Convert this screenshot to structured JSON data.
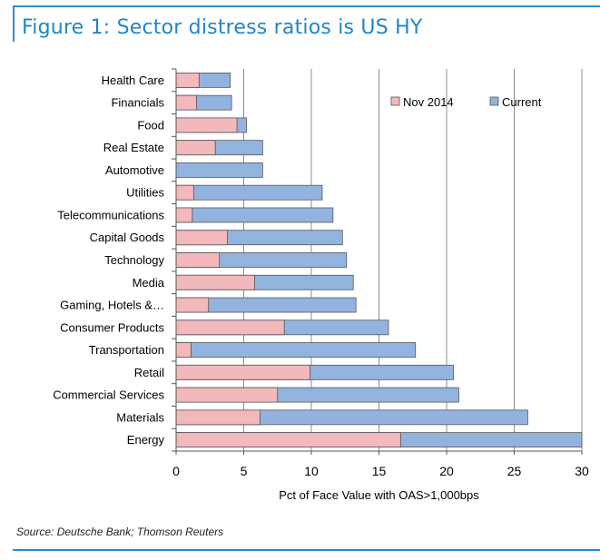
{
  "header": {
    "title": "Figure 1: Sector distress ratios is US HY"
  },
  "footer": {
    "source": "Source: Deutsche Bank; Thomson Reuters"
  },
  "colors": {
    "accent": "#2e8bc9",
    "nov2014": "#f2b8bc",
    "current": "#93b3df",
    "edge": "#555555"
  },
  "chart_data": {
    "type": "bar",
    "orientation": "horizontal",
    "stacked": "overlay",
    "title": "Figure 1: Sector distress ratios is US HY",
    "xlabel": "Pct of Face Value with OAS>1,000bps",
    "ylabel": "",
    "xlim": [
      0,
      30
    ],
    "xticks": [
      0,
      5,
      10,
      15,
      20,
      25,
      30
    ],
    "grid": "vertical",
    "legend_position": "top-right",
    "categories": [
      "Health Care",
      "Financials",
      "Food",
      "Real Estate",
      "Automotive",
      "Utilities",
      "Telecommunications",
      "Capital Goods",
      "Technology",
      "Media",
      "Gaming, Hotels &…",
      "Consumer Products",
      "Transportation",
      "Retail",
      "Commercial Services",
      "Materials",
      "Energy"
    ],
    "series": [
      {
        "name": "Nov 2014",
        "values": [
          1.7,
          1.5,
          4.5,
          2.9,
          0,
          1.3,
          1.2,
          3.8,
          3.2,
          5.8,
          2.4,
          8.0,
          1.1,
          9.9,
          7.5,
          6.2,
          16.6
        ]
      },
      {
        "name": "Current",
        "values": [
          4.0,
          4.1,
          5.2,
          6.4,
          6.4,
          10.8,
          11.6,
          12.3,
          12.6,
          13.1,
          13.3,
          15.7,
          17.7,
          20.5,
          20.9,
          26.0,
          30.0
        ]
      }
    ]
  }
}
